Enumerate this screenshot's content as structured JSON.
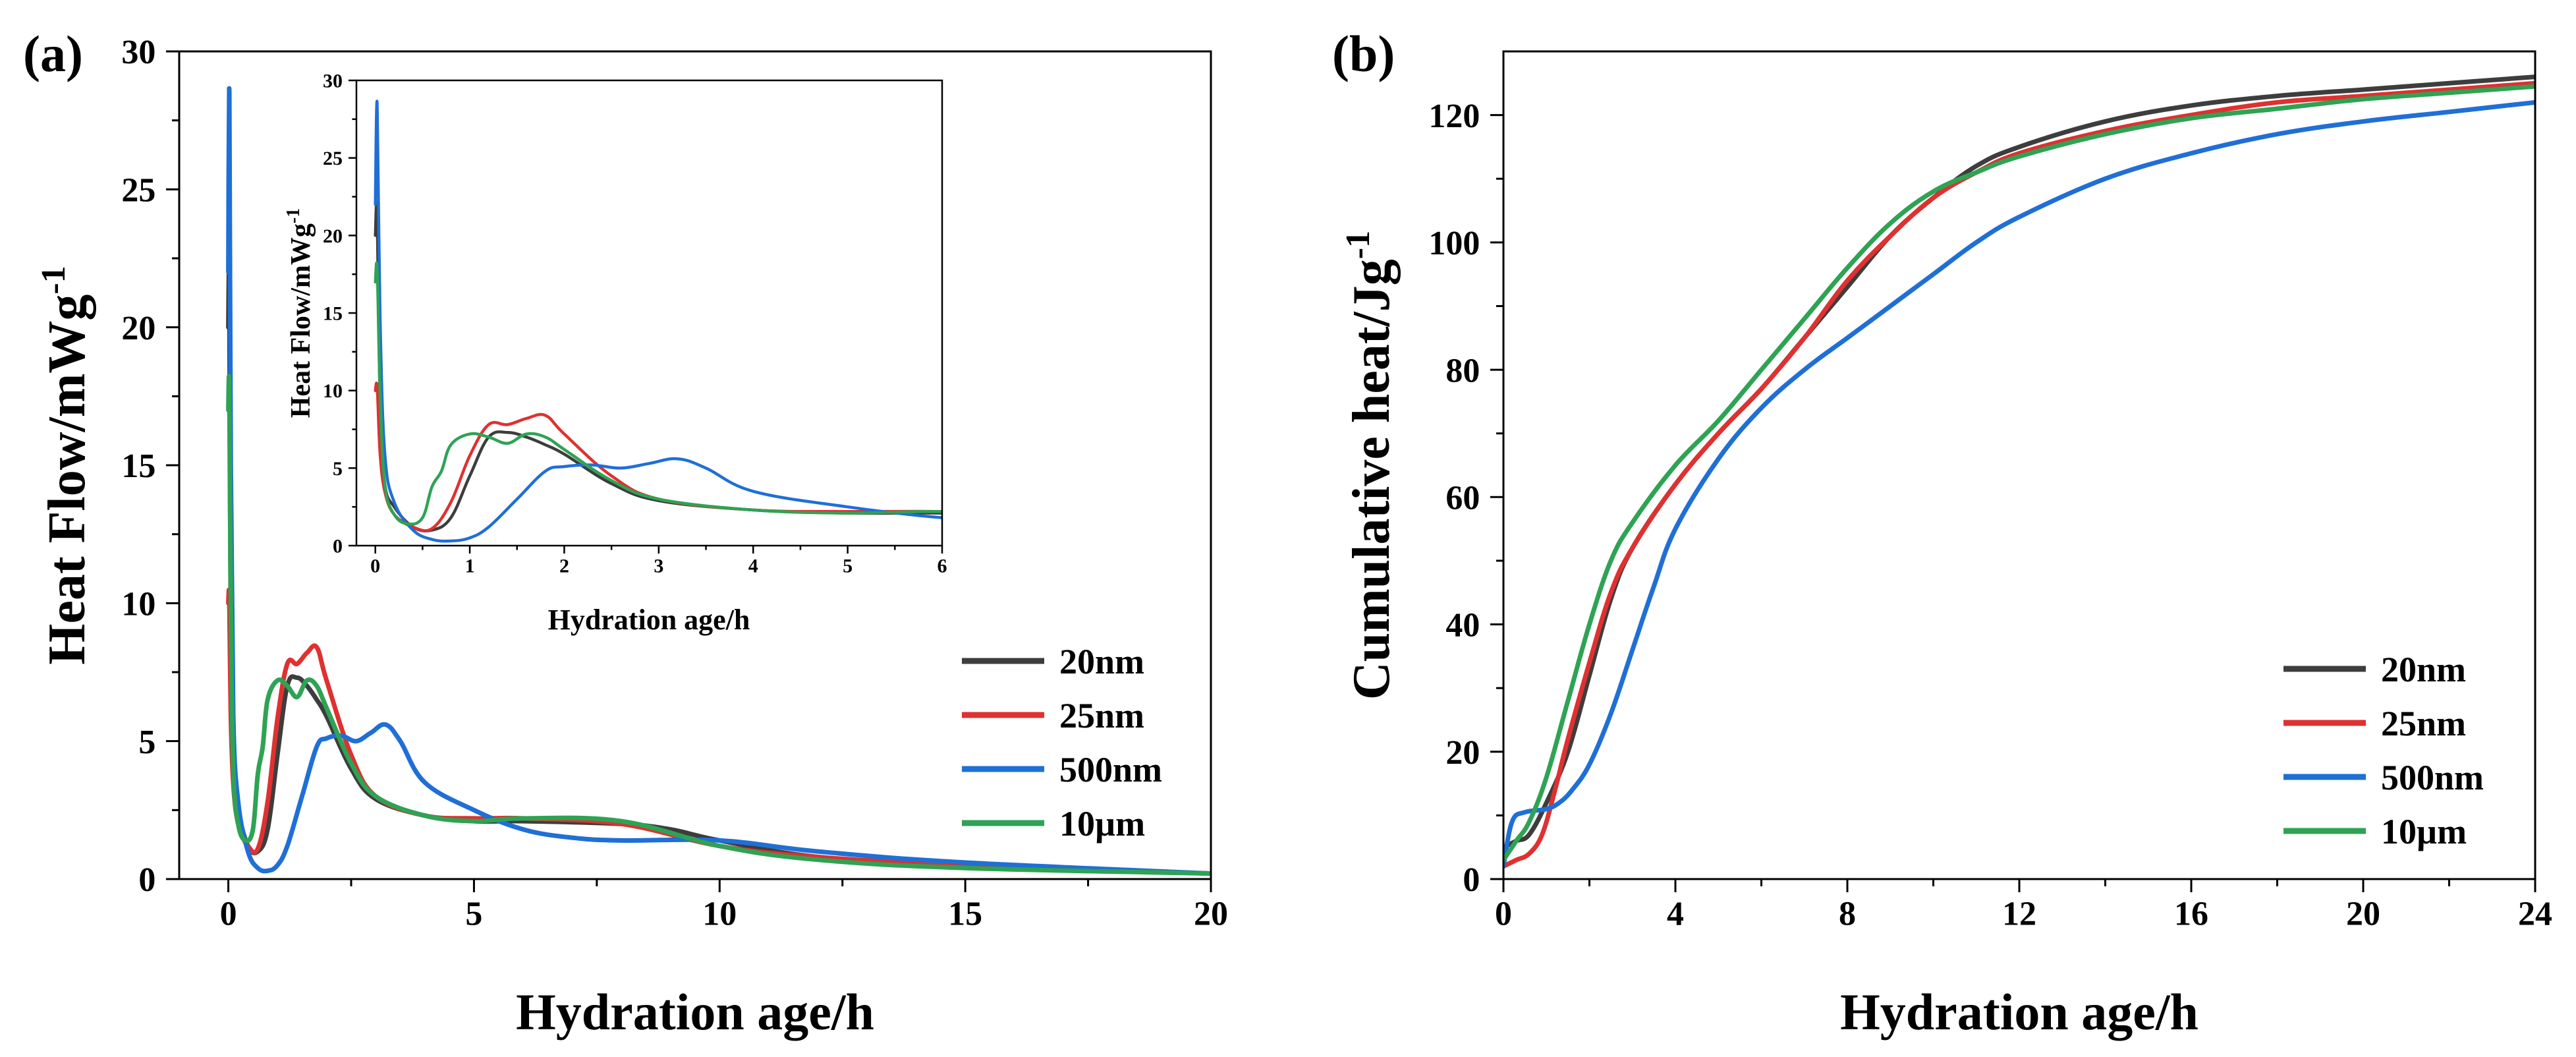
{
  "colors": {
    "20nm": "#3d3d3d",
    "25nm": "#e03030",
    "500nm": "#1f6fd6",
    "10µm": "#2ea354",
    "axis": "#000000",
    "background": "#ffffff"
  },
  "chart_data": [
    {
      "id": "a",
      "type": "line",
      "panel_label": "(a)",
      "xlabel": "Hydration age/h",
      "ylabel": "Heat Flow/mWg",
      "ylabel_superscript": "-1",
      "xlim": [
        -1,
        20
      ],
      "ylim": [
        0,
        30
      ],
      "xticks": [
        0,
        5,
        10,
        15,
        20
      ],
      "yticks": [
        0,
        5,
        10,
        15,
        20,
        25,
        30
      ],
      "legend_position": "bottom-right",
      "series": [
        {
          "name": "20nm",
          "color": "#3d3d3d",
          "x": [
            0,
            0.02,
            0.05,
            0.1,
            0.2,
            0.4,
            0.6,
            0.8,
            1,
            1.2,
            1.4,
            1.6,
            1.8,
            2,
            2.5,
            3,
            4,
            5,
            6,
            8,
            9,
            10,
            12,
            15,
            20
          ],
          "y": [
            20,
            21.5,
            9,
            4,
            2.5,
            1.2,
            1.0,
            1.8,
            4.5,
            7.0,
            7.3,
            7.0,
            6.5,
            5.9,
            4.0,
            2.9,
            2.3,
            2.1,
            2.1,
            2.0,
            1.8,
            1.4,
            0.8,
            0.5,
            0.2
          ]
        },
        {
          "name": "25nm",
          "color": "#e03030",
          "x": [
            0,
            0.02,
            0.05,
            0.1,
            0.2,
            0.4,
            0.6,
            0.8,
            1,
            1.2,
            1.4,
            1.6,
            1.8,
            2,
            2.5,
            3,
            4,
            5,
            6,
            8,
            10,
            12,
            15,
            20
          ],
          "y": [
            10,
            10.2,
            6,
            3.5,
            2,
            1.2,
            1.1,
            2.8,
            5.8,
            7.8,
            7.8,
            8.2,
            8.4,
            7.2,
            4.5,
            3.0,
            2.3,
            2.2,
            2.2,
            2.0,
            1.2,
            0.8,
            0.5,
            0.2
          ]
        },
        {
          "name": "500nm",
          "color": "#1f6fd6",
          "x": [
            0,
            0.02,
            0.05,
            0.1,
            0.2,
            0.4,
            0.6,
            0.8,
            1,
            1.2,
            1.5,
            1.8,
            2,
            2.3,
            2.6,
            2.9,
            3.2,
            3.5,
            4,
            5,
            6,
            7,
            8,
            10,
            12,
            15,
            20
          ],
          "y": [
            22,
            28.5,
            15,
            6,
            2.8,
            1.0,
            0.4,
            0.3,
            0.5,
            1.2,
            3.0,
            4.8,
            5.1,
            5.2,
            5.0,
            5.3,
            5.6,
            5.0,
            3.5,
            2.5,
            1.8,
            1.5,
            1.4,
            1.4,
            1.0,
            0.6,
            0.2
          ]
        },
        {
          "name": "10µm",
          "color": "#2ea354",
          "x": [
            0,
            0.02,
            0.05,
            0.1,
            0.2,
            0.35,
            0.5,
            0.6,
            0.7,
            0.8,
            1,
            1.2,
            1.4,
            1.6,
            1.8,
            2,
            2.5,
            3,
            4,
            5,
            6,
            8,
            10,
            12,
            15,
            20
          ],
          "y": [
            17,
            17.8,
            10,
            4,
            2,
            1.4,
            1.8,
            3.8,
            4.8,
            6.5,
            7.2,
            7.0,
            6.6,
            7.2,
            7.0,
            6.2,
            4.2,
            3.0,
            2.3,
            2.1,
            2.2,
            2.1,
            1.2,
            0.7,
            0.4,
            0.2
          ]
        }
      ],
      "inset": {
        "xlabel": "Hydration age/h",
        "ylabel": "Heat Flow/mWg",
        "ylabel_superscript": "-1",
        "xlim": [
          -0.2,
          6
        ],
        "ylim": [
          0,
          30
        ],
        "xticks": [
          0,
          1,
          2,
          3,
          4,
          5,
          6
        ],
        "yticks": [
          0,
          5,
          10,
          15,
          20,
          25,
          30
        ]
      }
    },
    {
      "id": "b",
      "type": "line",
      "panel_label": "(b)",
      "xlabel": "Hydration age/h",
      "ylabel": "Cumulative heat/Jg",
      "ylabel_superscript": "-1",
      "xlim": [
        0,
        24
      ],
      "ylim": [
        0,
        130
      ],
      "xticks": [
        0,
        4,
        8,
        12,
        16,
        20,
        24
      ],
      "yticks": [
        0,
        20,
        40,
        60,
        80,
        100,
        120
      ],
      "legend_position": "bottom-right",
      "series": [
        {
          "name": "20nm",
          "color": "#3d3d3d",
          "x": [
            0,
            0.3,
            0.6,
            1,
            1.5,
            2,
            2.5,
            3,
            4,
            5,
            6,
            7,
            8,
            9,
            10,
            11,
            12,
            14,
            16,
            18,
            20,
            22,
            24
          ],
          "y": [
            5,
            6,
            7,
            12,
            20,
            32,
            44,
            52,
            62,
            70,
            77,
            85,
            93,
            101,
            107,
            112,
            115,
            119,
            121.5,
            123,
            124,
            125,
            126
          ]
        },
        {
          "name": "25nm",
          "color": "#e03030",
          "x": [
            0,
            0.3,
            0.6,
            0.9,
            1.2,
            1.5,
            2,
            2.5,
            3,
            4,
            5,
            6,
            7,
            8,
            9,
            10,
            11,
            12,
            14,
            16,
            18,
            20,
            22,
            24
          ],
          "y": [
            2,
            3,
            4,
            7,
            14,
            22,
            34,
            45,
            52,
            62,
            70,
            77,
            85,
            94,
            101,
            107,
            111,
            114,
            117.5,
            120,
            122,
            123,
            124,
            125
          ]
        },
        {
          "name": "500nm",
          "color": "#1f6fd6",
          "x": [
            0,
            0.2,
            0.5,
            1,
            1.3,
            1.6,
            2,
            2.5,
            3,
            3.5,
            4,
            5,
            6,
            7,
            8,
            9,
            10,
            11,
            12,
            14,
            16,
            18,
            20,
            22,
            24
          ],
          "y": [
            2,
            9,
            10.5,
            11,
            12,
            14,
            18,
            26,
            36,
            46,
            55,
            66,
            74,
            80,
            85,
            90,
            95,
            100,
            104,
            110,
            114,
            117,
            119,
            120.5,
            122
          ]
        },
        {
          "name": "10µm",
          "color": "#2ea354",
          "x": [
            0,
            0.3,
            0.6,
            1,
            1.5,
            2,
            2.5,
            3,
            4,
            5,
            6,
            7,
            8,
            9,
            10,
            11,
            12,
            14,
            16,
            18,
            20,
            22,
            24
          ],
          "y": [
            3,
            6,
            9,
            16,
            28,
            40,
            50,
            56,
            65,
            72,
            80,
            88,
            96,
            103,
            108,
            111,
            113.5,
            117,
            119.5,
            121,
            122.5,
            123.5,
            124.5
          ]
        }
      ]
    }
  ]
}
